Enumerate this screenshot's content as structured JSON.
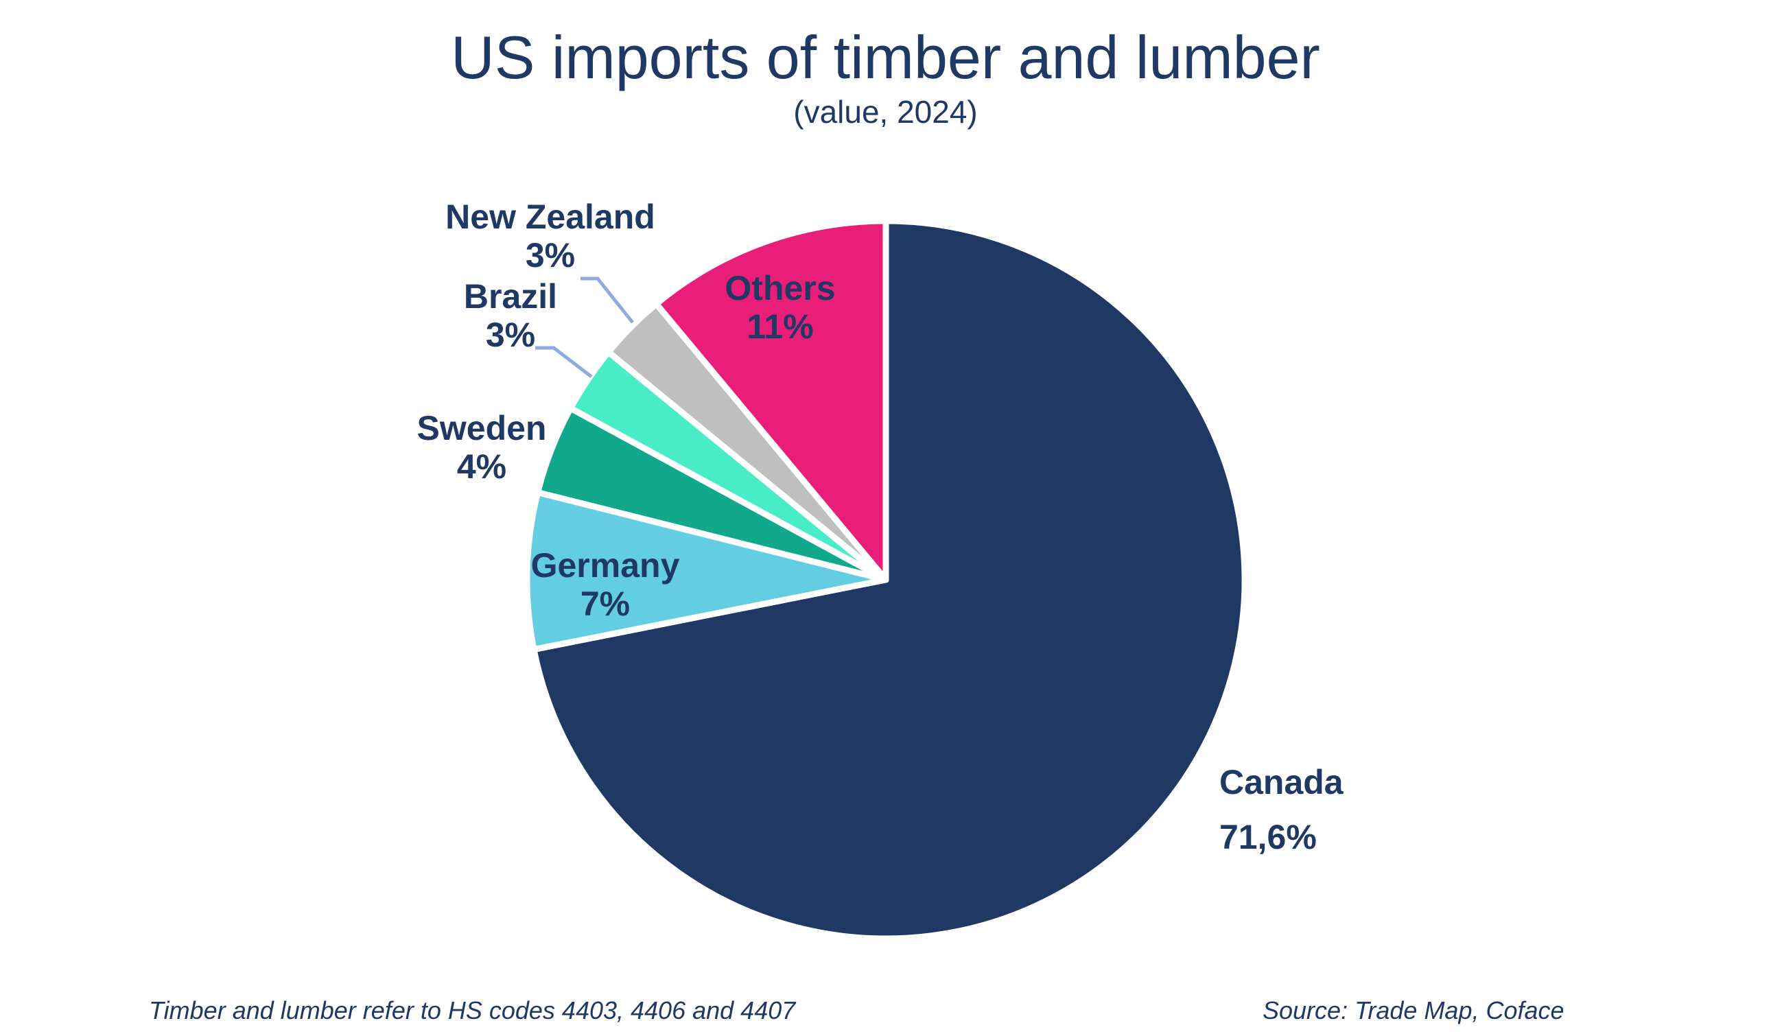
{
  "chart_data": {
    "type": "pie",
    "title": "US imports of timber and lumber",
    "subtitle": "(value, 2024)",
    "direction": "clockwise",
    "start_angle_deg": 0,
    "legend": "none",
    "slices": [
      {
        "label": "Canada",
        "value": 71.6,
        "pct_label": "71,6%",
        "color": "#1F3864"
      },
      {
        "label": "Germany",
        "value": 7,
        "pct_label": "7%",
        "color": "#63CEE1"
      },
      {
        "label": "Sweden",
        "value": 4,
        "pct_label": "4%",
        "color": "#10A98C"
      },
      {
        "label": "Brazil",
        "value": 3,
        "pct_label": "3%",
        "color": "#48EDC5"
      },
      {
        "label": "New Zealand",
        "value": 3,
        "pct_label": "3%",
        "color": "#BFBFBF"
      },
      {
        "label": "Others",
        "value": 11,
        "pct_label": "11%",
        "color": "#E81E78"
      }
    ]
  },
  "footer": {
    "note": "Timber and lumber refer to HS codes 4403, 4406 and 4407",
    "source": "Source: Trade Map, Coface"
  },
  "colors": {
    "text": "#1F3864",
    "slice_border": "#FFFFFF",
    "leader_line": "#8FAADC",
    "background": "#FFFFFF"
  }
}
